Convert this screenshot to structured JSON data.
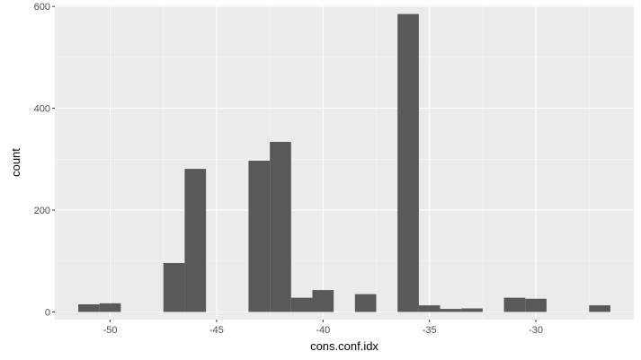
{
  "chart_data": {
    "type": "bar",
    "subtype": "histogram",
    "xlabel": "cons.conf.idx",
    "ylabel": "count",
    "xlim": [
      -52.6,
      -25.4
    ],
    "ylim": [
      -15,
      602
    ],
    "x_ticks": [
      -50,
      -45,
      -40,
      -35,
      -30
    ],
    "x_tick_labels": [
      "-50",
      "-45",
      "-40",
      "-35",
      "-30"
    ],
    "y_ticks": [
      0,
      200,
      400,
      600
    ],
    "y_tick_labels": [
      "0",
      "200",
      "400",
      "600"
    ],
    "bin_width": 1.0,
    "bins": [
      {
        "x_start": -51.5,
        "x_end": -50.5,
        "count": 15
      },
      {
        "x_start": -50.5,
        "x_end": -49.5,
        "count": 17
      },
      {
        "x_start": -47.5,
        "x_end": -46.5,
        "count": 96
      },
      {
        "x_start": -46.5,
        "x_end": -45.5,
        "count": 281
      },
      {
        "x_start": -43.5,
        "x_end": -42.5,
        "count": 297
      },
      {
        "x_start": -42.5,
        "x_end": -41.5,
        "count": 334
      },
      {
        "x_start": -41.5,
        "x_end": -40.5,
        "count": 28
      },
      {
        "x_start": -40.5,
        "x_end": -39.5,
        "count": 43
      },
      {
        "x_start": -38.5,
        "x_end": -37.5,
        "count": 35
      },
      {
        "x_start": -36.5,
        "x_end": -35.5,
        "count": 585
      },
      {
        "x_start": -35.5,
        "x_end": -34.5,
        "count": 13
      },
      {
        "x_start": -34.5,
        "x_end": -33.5,
        "count": 6
      },
      {
        "x_start": -33.5,
        "x_end": -32.5,
        "count": 7
      },
      {
        "x_start": -31.5,
        "x_end": -30.5,
        "count": 28
      },
      {
        "x_start": -30.5,
        "x_end": -29.5,
        "count": 26
      },
      {
        "x_start": -27.5,
        "x_end": -26.5,
        "count": 13
      }
    ],
    "grid": true,
    "colors": {
      "panel_background": "#ebebeb",
      "grid_major": "#ffffff",
      "grid_minor": "#f5f5f5",
      "bar_fill": "#595959"
    }
  }
}
